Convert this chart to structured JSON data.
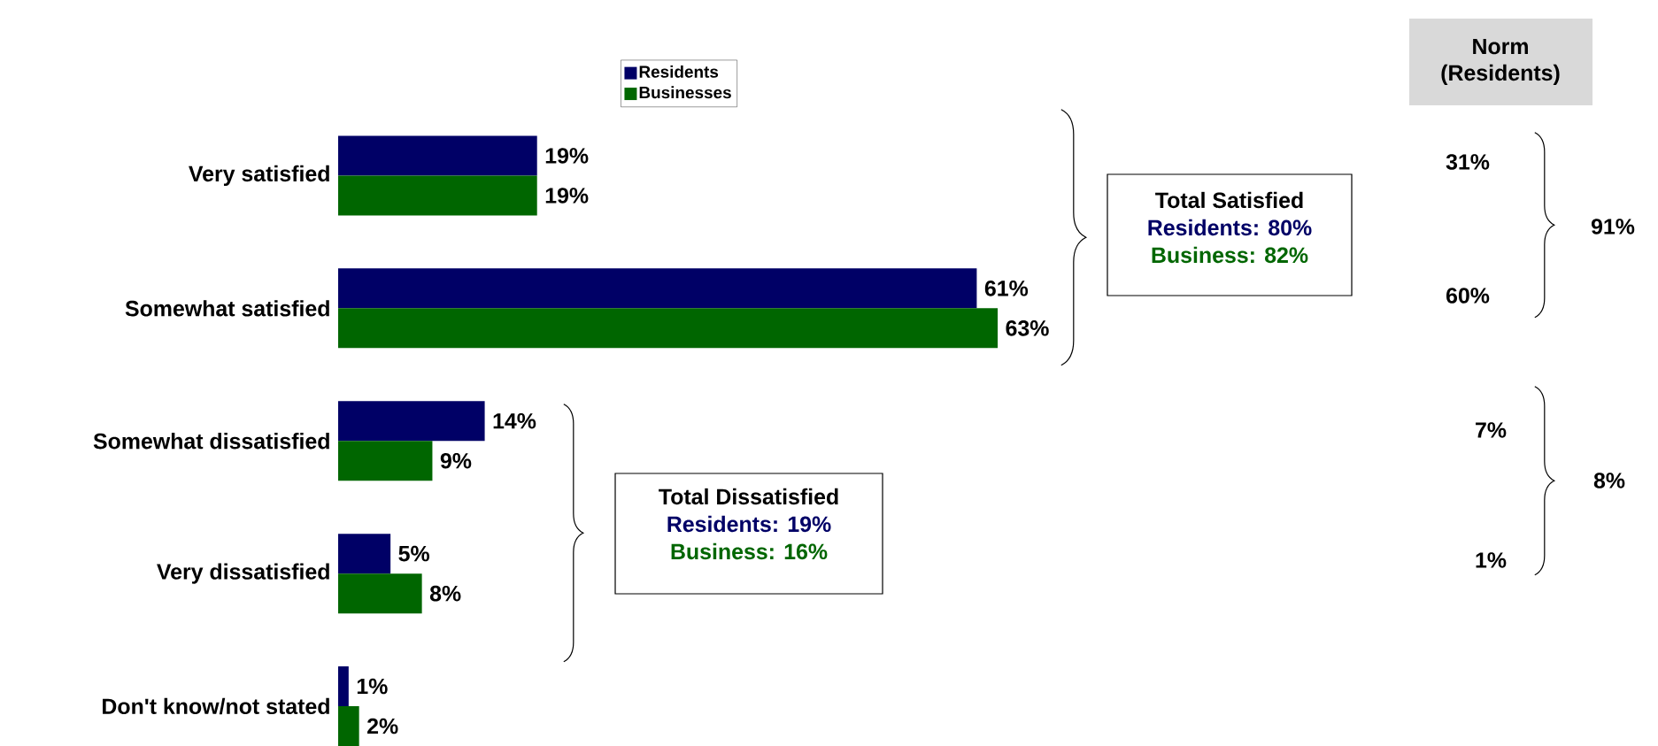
{
  "chart_data": {
    "type": "bar",
    "orientation": "horizontal",
    "categories": [
      "Very satisfied",
      "Somewhat satisfied",
      "Somewhat dissatisfied",
      "Very dissatisfied",
      "Don't know/not stated"
    ],
    "series": [
      {
        "name": "Residents",
        "color": "#000066",
        "values": [
          19,
          61,
          14,
          5,
          1
        ],
        "value_labels": [
          "19%",
          "61%",
          "14%",
          "5%",
          "1%"
        ]
      },
      {
        "name": "Businesses",
        "color": "#006600",
        "values": [
          19,
          63,
          9,
          8,
          2
        ],
        "value_labels": [
          "19%",
          "63%",
          "9%",
          "8%",
          "2%"
        ]
      }
    ],
    "legend": "top",
    "annotations": [
      "Total Satisfied",
      "Residents: 80%",
      "Business: 82%",
      "Total Dissatisfied",
      "Residents: 19%",
      "Business: 16%",
      "Norm (Residents)",
      "31%",
      "60%",
      "91%",
      "7%",
      "1%",
      "8%"
    ]
  }
}
